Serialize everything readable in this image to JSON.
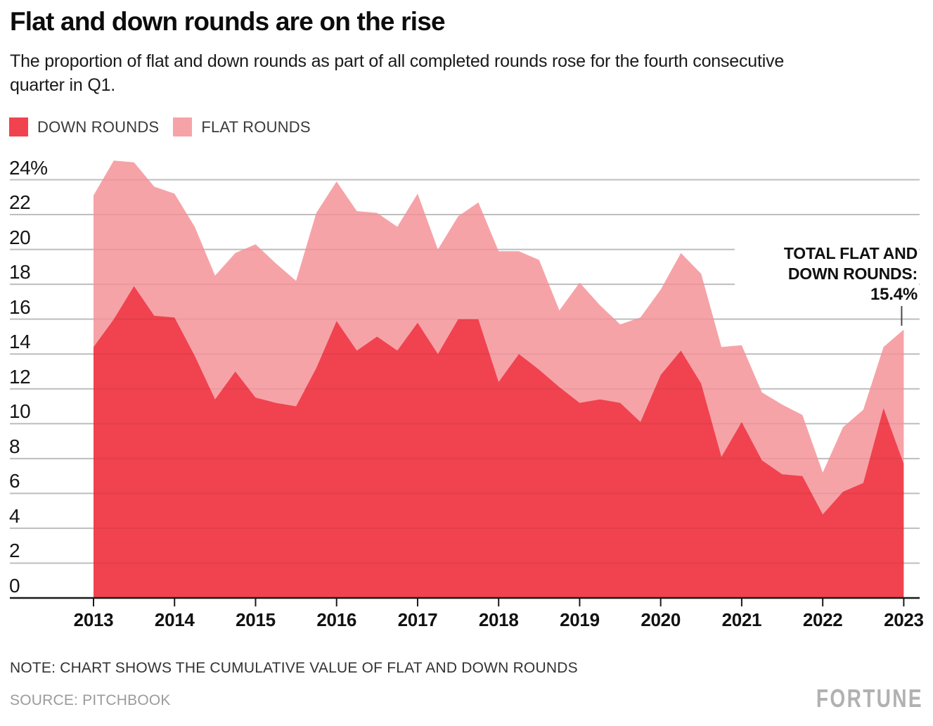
{
  "title": "Flat and down rounds are on the rise",
  "subtitle": "The proportion of flat and down rounds as part of all completed rounds rose for the fourth consecutive quarter in Q1.",
  "legend": {
    "items": [
      {
        "label": "DOWN ROUNDS",
        "color": "#f0434f"
      },
      {
        "label": "FLAT ROUNDS",
        "color": "#f6a3a8"
      }
    ]
  },
  "annotation": {
    "line1": "TOTAL FLAT AND",
    "line2": "DOWN ROUNDS:",
    "value": "15.4%"
  },
  "note": "NOTE: CHART SHOWS THE CUMULATIVE VALUE OF FLAT AND DOWN ROUNDS",
  "source": "SOURCE: PITCHBOOK",
  "brand": "FORTUNE",
  "chart_data": {
    "type": "area",
    "stacked": true,
    "title": "Flat and down rounds are on the rise",
    "ylabel": "",
    "xlabel": "",
    "ylim": [
      0,
      24
    ],
    "grid": "horizontal",
    "legend_position": "top-left",
    "unit": "percent",
    "categories": [
      "2013 Q1",
      "2013 Q2",
      "2013 Q3",
      "2013 Q4",
      "2014 Q1",
      "2014 Q2",
      "2014 Q3",
      "2014 Q4",
      "2015 Q1",
      "2015 Q2",
      "2015 Q3",
      "2015 Q4",
      "2016 Q1",
      "2016 Q2",
      "2016 Q3",
      "2016 Q4",
      "2017 Q1",
      "2017 Q2",
      "2017 Q3",
      "2017 Q4",
      "2018 Q1",
      "2018 Q2",
      "2018 Q3",
      "2018 Q4",
      "2019 Q1",
      "2019 Q2",
      "2019 Q3",
      "2019 Q4",
      "2020 Q1",
      "2020 Q2",
      "2020 Q3",
      "2020 Q4",
      "2021 Q1",
      "2021 Q2",
      "2021 Q3",
      "2021 Q4",
      "2022 Q1",
      "2022 Q2",
      "2022 Q3",
      "2022 Q4",
      "2023 Q1"
    ],
    "series": [
      {
        "name": "DOWN ROUNDS",
        "color": "#f0434f",
        "values": [
          14.4,
          16.0,
          17.9,
          16.2,
          16.1,
          13.9,
          11.4,
          13.0,
          11.5,
          11.2,
          11.0,
          13.2,
          15.9,
          14.2,
          15.0,
          14.2,
          15.8,
          14.0,
          16.0,
          16.0,
          12.4,
          14.0,
          13.1,
          12.1,
          11.2,
          11.4,
          11.2,
          10.1,
          12.8,
          14.2,
          12.3,
          8.1,
          10.1,
          7.9,
          7.1,
          7.0,
          4.8,
          6.1,
          6.6,
          10.9,
          7.7
        ]
      },
      {
        "name": "FLAT ROUNDS",
        "color": "#f6a3a8",
        "values": [
          8.7,
          9.1,
          7.1,
          7.4,
          7.1,
          7.4,
          7.1,
          6.8,
          8.8,
          8.0,
          7.2,
          8.9,
          8.0,
          8.0,
          7.1,
          7.1,
          7.4,
          6.0,
          5.9,
          6.7,
          7.5,
          5.9,
          6.3,
          4.4,
          6.9,
          5.4,
          4.5,
          6.0,
          4.9,
          5.6,
          6.3,
          6.3,
          4.4,
          3.9,
          4.0,
          3.5,
          2.4,
          3.7,
          4.2,
          3.5,
          7.7
        ]
      }
    ],
    "totals": [
      23.1,
      25.1,
      25.0,
      23.6,
      23.2,
      21.3,
      18.5,
      19.8,
      20.3,
      19.2,
      18.2,
      22.1,
      23.9,
      22.2,
      22.1,
      21.3,
      23.2,
      20.0,
      21.9,
      22.7,
      19.9,
      19.9,
      19.4,
      16.5,
      18.1,
      16.8,
      15.7,
      16.1,
      17.7,
      19.8,
      18.6,
      14.4,
      14.5,
      11.8,
      11.1,
      10.5,
      7.2,
      9.8,
      10.8,
      14.4,
      15.4
    ],
    "y_ticks": [
      {
        "v": 24,
        "label": "24%"
      },
      {
        "v": 22,
        "label": "22"
      },
      {
        "v": 20,
        "label": "20"
      },
      {
        "v": 18,
        "label": "18"
      },
      {
        "v": 16,
        "label": "16"
      },
      {
        "v": 14,
        "label": "14"
      },
      {
        "v": 12,
        "label": "12"
      },
      {
        "v": 10,
        "label": "10"
      },
      {
        "v": 8,
        "label": "8"
      },
      {
        "v": 6,
        "label": "6"
      },
      {
        "v": 4,
        "label": "4"
      },
      {
        "v": 2,
        "label": "2"
      },
      {
        "v": 0,
        "label": "0"
      }
    ],
    "x_ticks": [
      {
        "q": 0,
        "label": "2013"
      },
      {
        "q": 4,
        "label": "2014"
      },
      {
        "q": 8,
        "label": "2015"
      },
      {
        "q": 12,
        "label": "2016"
      },
      {
        "q": 16,
        "label": "2017"
      },
      {
        "q": 20,
        "label": "2018"
      },
      {
        "q": 24,
        "label": "2019"
      },
      {
        "q": 28,
        "label": "2020"
      },
      {
        "q": 32,
        "label": "2021"
      },
      {
        "q": 36,
        "label": "2022"
      },
      {
        "q": 40,
        "label": "2023"
      }
    ],
    "colors": {
      "grid": "#c9c9c9",
      "axis": "#1a1a1a",
      "annotation_pointer": "#4a4a4a"
    }
  }
}
